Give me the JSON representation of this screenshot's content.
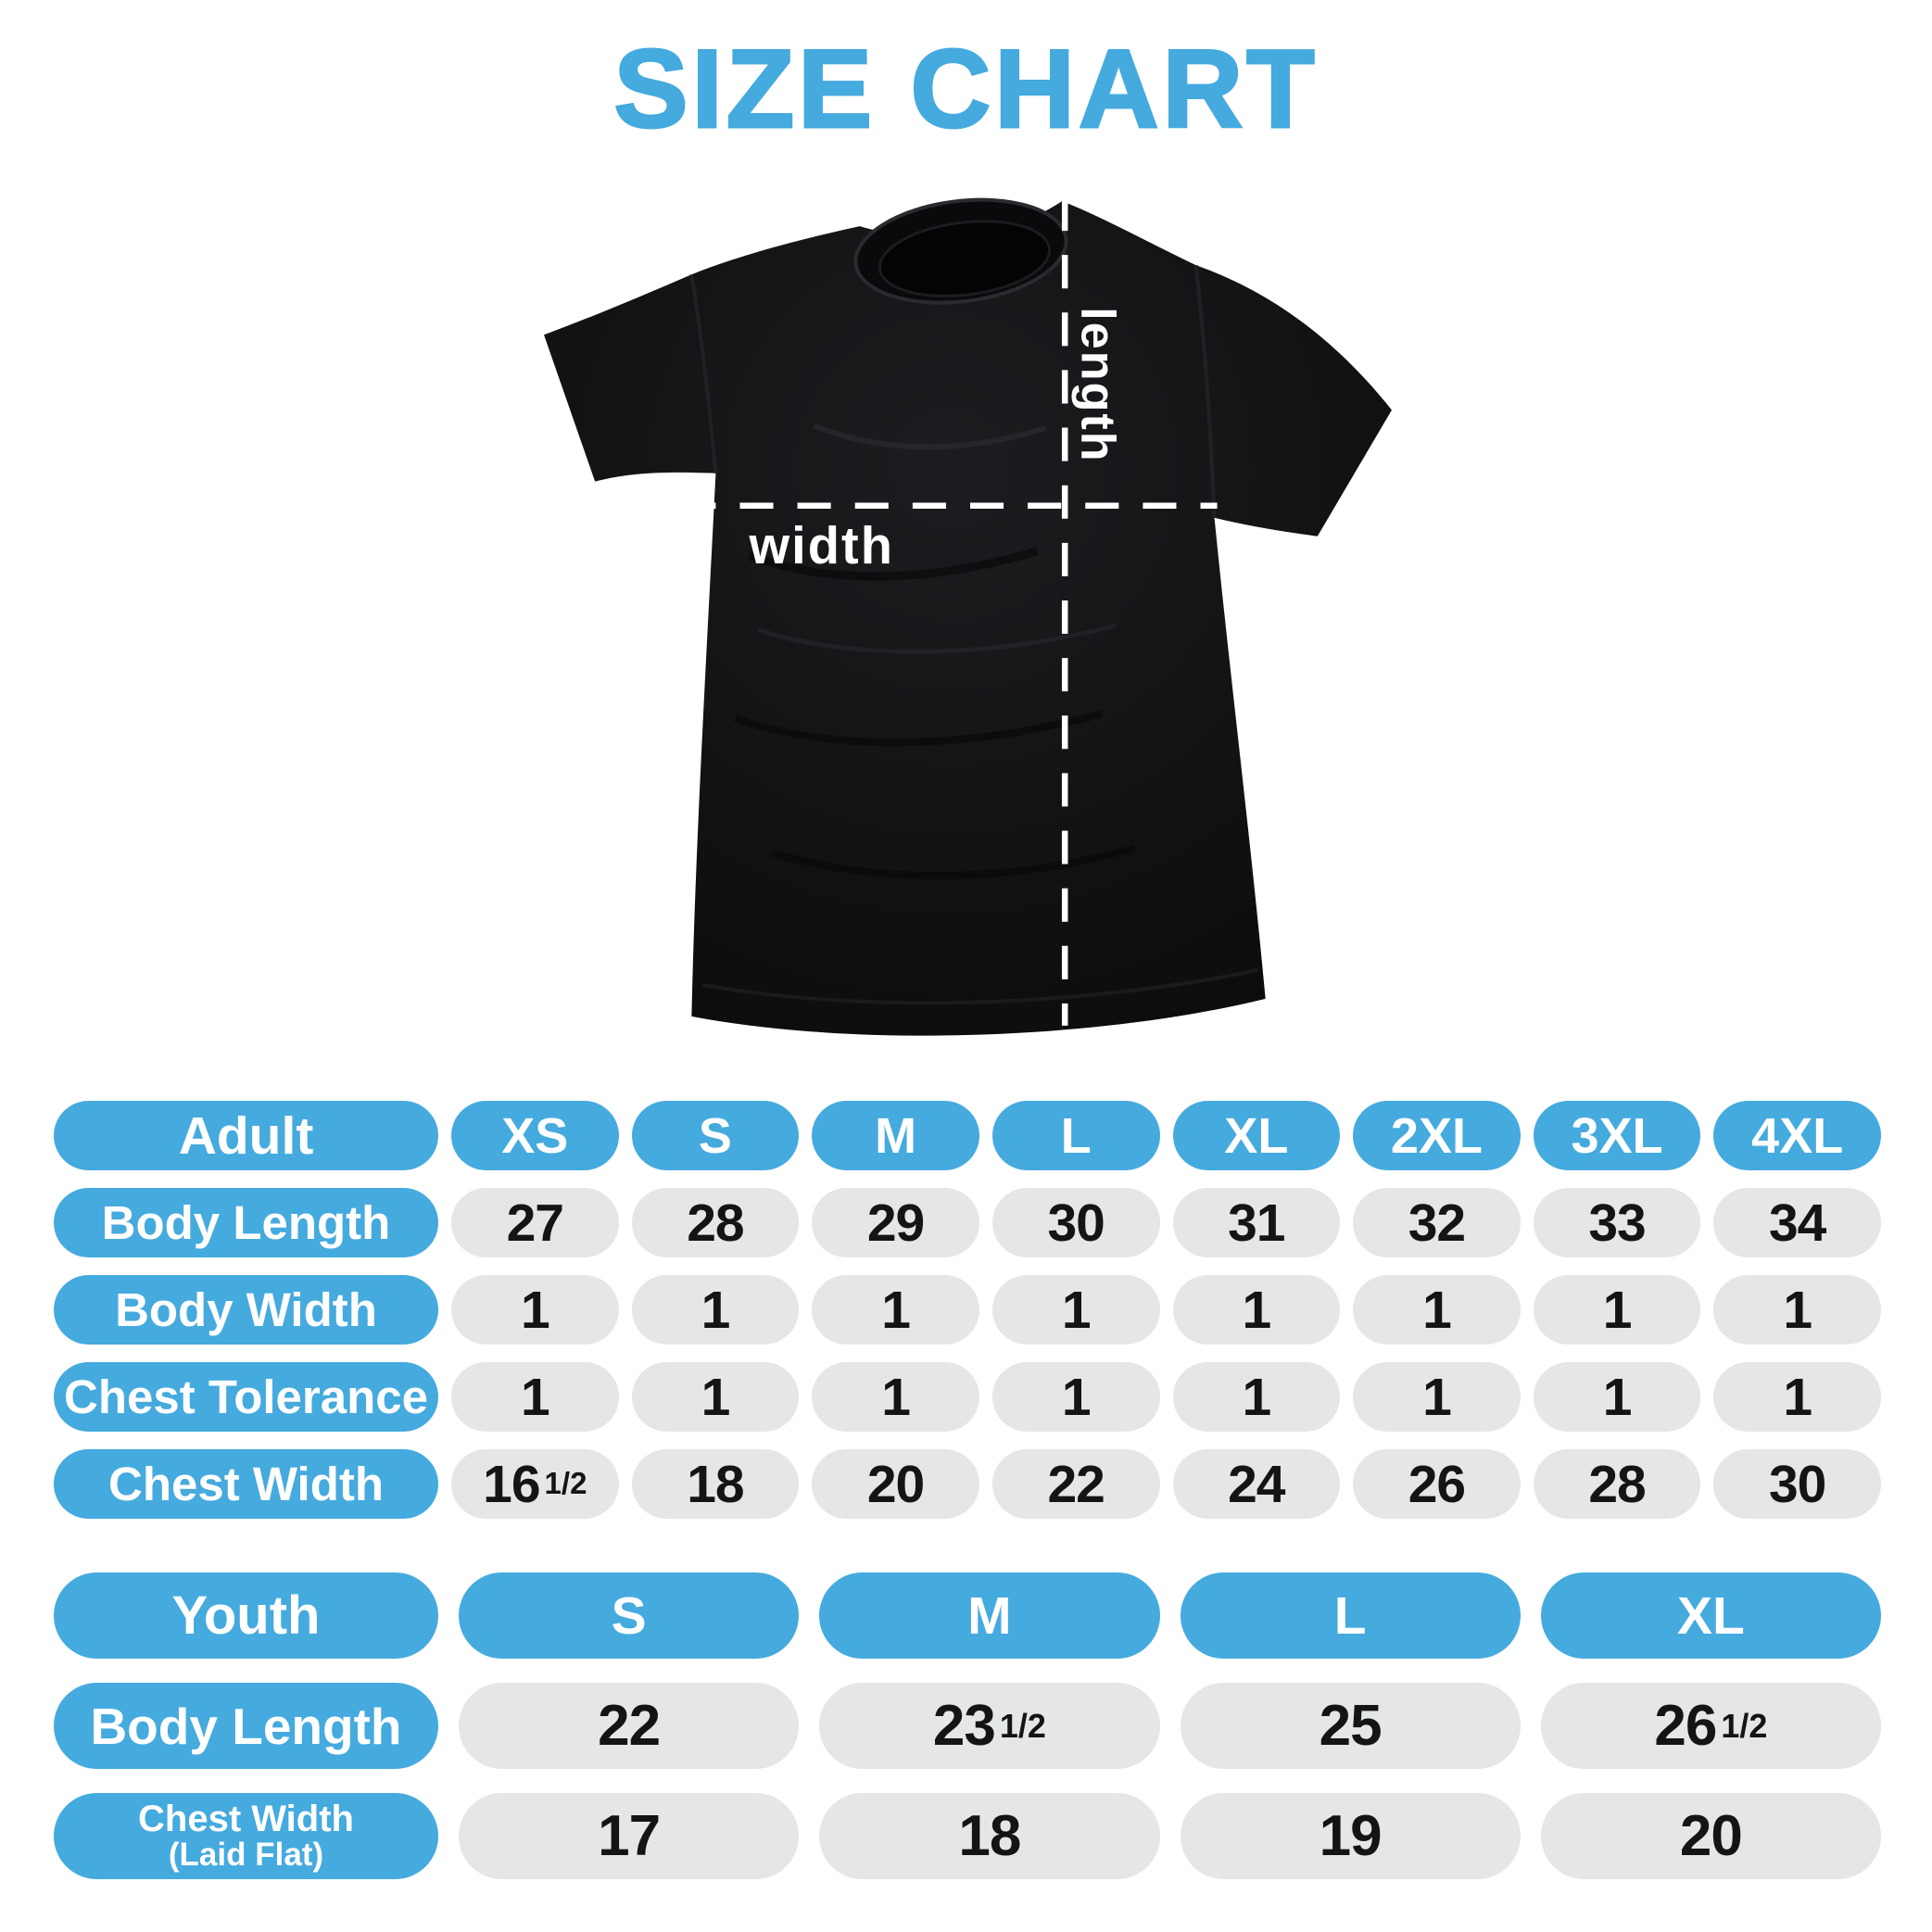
{
  "page": {
    "title": "SIZE CHART"
  },
  "colors": {
    "accent": "#45aade",
    "pill_gray": "#e4e6e7",
    "shirt_black": "#121214",
    "value_text": "#141414",
    "diagram_line": "#ffffff"
  },
  "diagram": {
    "length_label": "length",
    "width_label": "width"
  },
  "adult_table": {
    "header_label": "Adult",
    "sizes": [
      "XS",
      "S",
      "M",
      "L",
      "XL",
      "2XL",
      "3XL",
      "4XL"
    ],
    "rows": [
      {
        "label": "Body Length",
        "values": [
          "27",
          "28",
          "29",
          "30",
          "31",
          "32",
          "33",
          "34"
        ]
      },
      {
        "label": "Body Width",
        "values": [
          "1",
          "1",
          "1",
          "1",
          "1",
          "1",
          "1",
          "1"
        ]
      },
      {
        "label": "Chest Tolerance",
        "values": [
          "1",
          "1",
          "1",
          "1",
          "1",
          "1",
          "1",
          "1"
        ]
      },
      {
        "label": "Chest Width",
        "values": [
          "16½",
          "18",
          "20",
          "22",
          "24",
          "26",
          "28",
          "30"
        ]
      }
    ]
  },
  "youth_table": {
    "header_label": "Youth",
    "sizes": [
      "S",
      "M",
      "L",
      "XL"
    ],
    "rows": [
      {
        "label": "Body Length",
        "values": [
          "22",
          "23½",
          "25",
          "26½"
        ]
      },
      {
        "label": "Chest Width",
        "sublabel": "(Laid Flat)",
        "values": [
          "17",
          "18",
          "19",
          "20"
        ]
      }
    ]
  },
  "chart_data": [
    {
      "type": "table",
      "title": "Adult",
      "columns": [
        "Adult",
        "XS",
        "S",
        "M",
        "L",
        "XL",
        "2XL",
        "3XL",
        "4XL"
      ],
      "rows": [
        [
          "Body Length",
          "27",
          "28",
          "29",
          "30",
          "31",
          "32",
          "33",
          "34"
        ],
        [
          "Body Width",
          "1",
          "1",
          "1",
          "1",
          "1",
          "1",
          "1",
          "1"
        ],
        [
          "Chest Tolerance",
          "1",
          "1",
          "1",
          "1",
          "1",
          "1",
          "1",
          "1"
        ],
        [
          "Chest Width",
          "16½",
          "18",
          "20",
          "22",
          "24",
          "26",
          "28",
          "30"
        ]
      ]
    },
    {
      "type": "table",
      "title": "Youth",
      "columns": [
        "Youth",
        "S",
        "M",
        "L",
        "XL"
      ],
      "rows": [
        [
          "Body Length",
          "22",
          "23½",
          "25",
          "26½"
        ],
        [
          "Chest Width (Laid Flat)",
          "17",
          "18",
          "19",
          "20"
        ]
      ]
    }
  ]
}
